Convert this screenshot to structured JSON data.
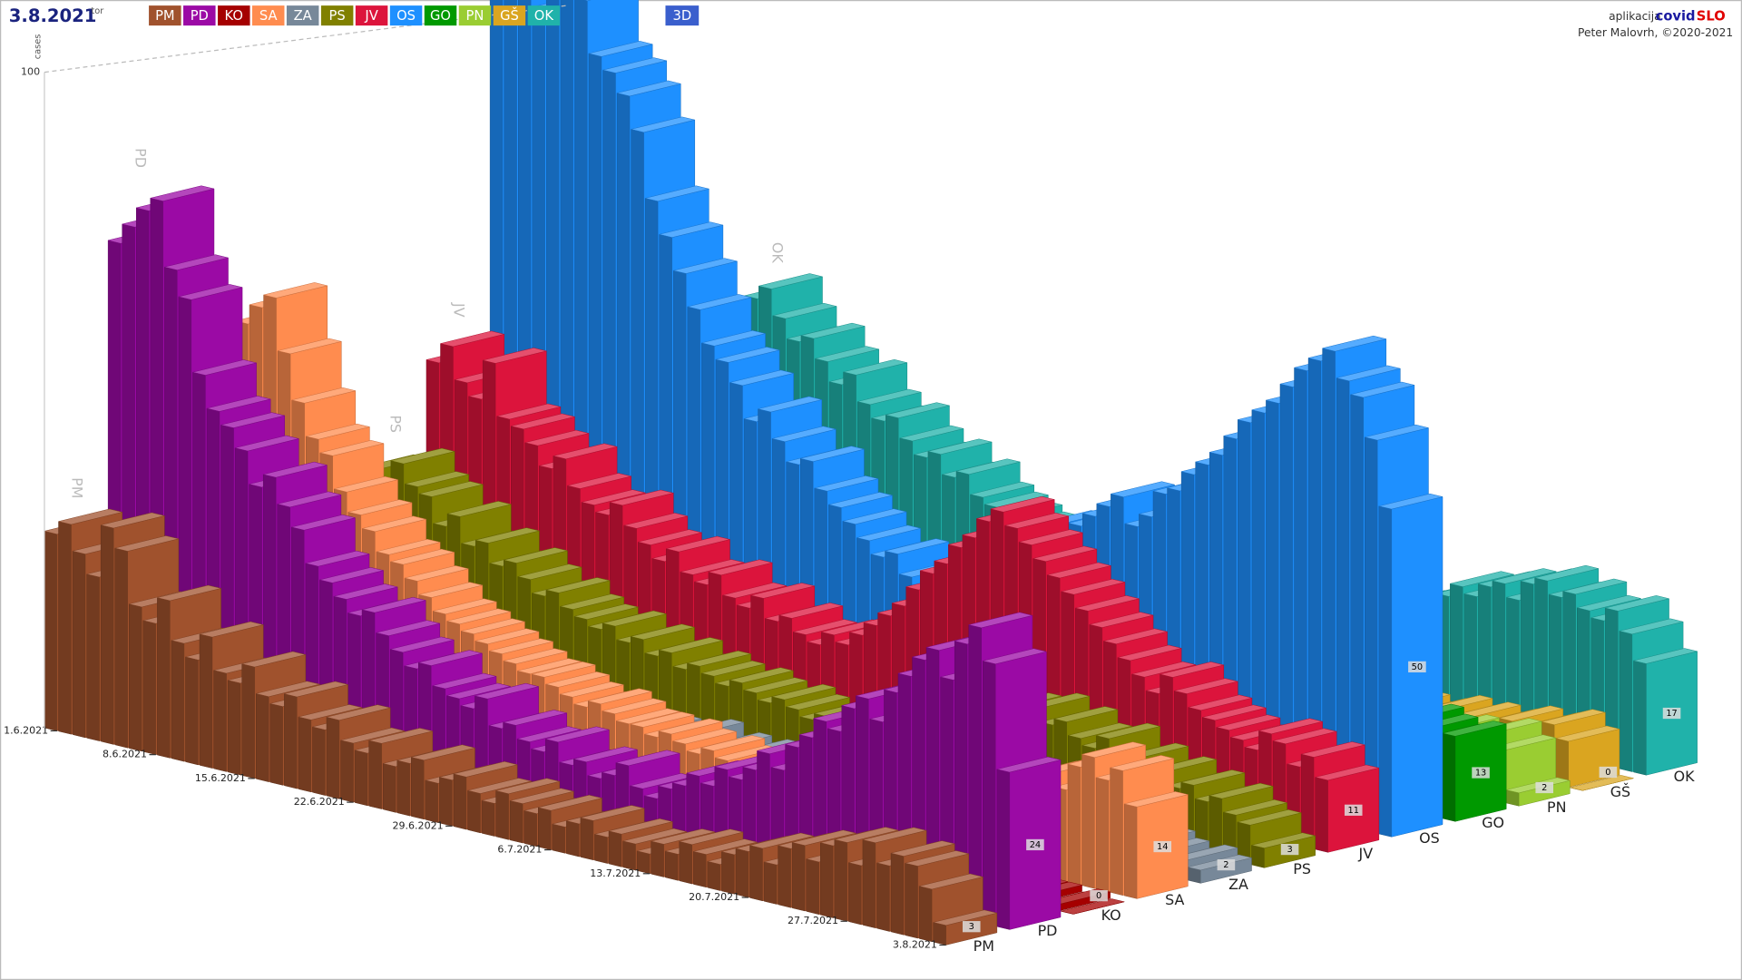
{
  "chart_data": {
    "type": "bar3d",
    "date": "3.8.2021",
    "weekday": "tor",
    "mode_button": "3D",
    "app_label": "aplikacija",
    "app_name_1": "covid",
    "app_name_2": "SLO",
    "credit": "Peter Malovrh, ©2020-2021",
    "ylabel": "cases",
    "categories": [
      "1.6.2021",
      null,
      null,
      null,
      null,
      null,
      null,
      "8.6.2021",
      null,
      null,
      null,
      null,
      null,
      null,
      "15.6.2021",
      null,
      null,
      null,
      null,
      null,
      null,
      "22.6.2021",
      null,
      null,
      null,
      null,
      null,
      null,
      "29.6.2021",
      null,
      null,
      null,
      null,
      null,
      null,
      "6.7.2021",
      null,
      null,
      null,
      null,
      null,
      null,
      "13.7.2021",
      null,
      null,
      null,
      null,
      null,
      null,
      "20.7.2021",
      null,
      null,
      null,
      null,
      null,
      null,
      "27.7.2021",
      null,
      null,
      null,
      null,
      null,
      null,
      "3.8.2021"
    ],
    "ylim": [
      0,
      100
    ],
    "yticks": [
      100
    ],
    "series": [
      {
        "name": "PM",
        "color": "#a0522d",
        "values": [
          30,
          32,
          28,
          25,
          33,
          30,
          22,
          20,
          24,
          18,
          16,
          20,
          15,
          14,
          17,
          13,
          12,
          14,
          11,
          10,
          12,
          9,
          8,
          10,
          7,
          8,
          9,
          6,
          7,
          8,
          6,
          5,
          7,
          6,
          5,
          6,
          4,
          5,
          6,
          4,
          5,
          4,
          3,
          5,
          4,
          6,
          5,
          4,
          6,
          7,
          8,
          6,
          9,
          10,
          8,
          11,
          12,
          9,
          13,
          10,
          12,
          11,
          8,
          3
        ]
      },
      {
        "name": "PD",
        "color": "#9b0aa5",
        "values": [
          72,
          75,
          78,
          80,
          70,
          66,
          55,
          50,
          48,
          45,
          40,
          42,
          38,
          35,
          30,
          28,
          26,
          24,
          25,
          22,
          20,
          18,
          19,
          16,
          15,
          14,
          16,
          12,
          13,
          11,
          10,
          12,
          9,
          10,
          8,
          9,
          11,
          8,
          7,
          9,
          10,
          12,
          11,
          14,
          13,
          15,
          18,
          16,
          20,
          22,
          25,
          24,
          28,
          30,
          27,
          32,
          35,
          38,
          40,
          36,
          42,
          45,
          40,
          24
        ]
      },
      {
        "name": "KO",
        "color": "#a50000",
        "values": [
          3,
          2,
          4,
          3,
          2,
          1,
          2,
          3,
          2,
          1,
          2,
          3,
          1,
          2,
          1,
          0,
          1,
          2,
          1,
          0,
          1,
          2,
          1,
          1,
          0,
          1,
          2,
          1,
          0,
          1,
          1,
          0,
          1,
          0,
          1,
          2,
          1,
          0,
          1,
          1,
          2,
          1,
          0,
          1,
          2,
          1,
          1,
          0,
          1,
          2,
          1,
          1,
          0,
          1,
          2,
          1,
          1,
          0,
          2,
          1,
          1,
          0,
          1,
          0
        ]
      },
      {
        "name": "SA",
        "color": "#ff8c4f",
        "values": [
          55,
          58,
          60,
          52,
          45,
          40,
          38,
          33,
          30,
          28,
          25,
          24,
          22,
          20,
          18,
          17,
          16,
          15,
          14,
          13,
          12,
          12,
          11,
          10,
          9,
          10,
          9,
          8,
          8,
          7,
          8,
          7,
          6,
          7,
          6,
          5,
          6,
          5,
          4,
          6,
          5,
          6,
          5,
          7,
          6,
          8,
          7,
          6,
          9,
          8,
          10,
          9,
          11,
          12,
          10,
          13,
          15,
          16,
          14,
          18,
          20,
          17,
          19,
          14
        ]
      },
      {
        "name": "ZA",
        "color": "#778899",
        "values": [
          8,
          7,
          9,
          6,
          8,
          7,
          5,
          6,
          5,
          6,
          4,
          5,
          6,
          4,
          5,
          3,
          4,
          5,
          3,
          4,
          3,
          4,
          3,
          2,
          3,
          2,
          3,
          4,
          2,
          3,
          2,
          3,
          2,
          3,
          2,
          1,
          3,
          2,
          2,
          1,
          2,
          3,
          2,
          2,
          1,
          2,
          3,
          2,
          2,
          3,
          4,
          3,
          2,
          3,
          4,
          3,
          4,
          3,
          2,
          4,
          3,
          2,
          3,
          2
        ]
      },
      {
        "name": "PS",
        "color": "#808000",
        "values": [
          28,
          25,
          30,
          27,
          26,
          22,
          24,
          20,
          21,
          18,
          19,
          17,
          15,
          16,
          14,
          13,
          12,
          13,
          11,
          12,
          10,
          11,
          9,
          10,
          9,
          8,
          9,
          8,
          7,
          8,
          7,
          6,
          7,
          6,
          7,
          8,
          9,
          8,
          10,
          11,
          10,
          12,
          13,
          12,
          14,
          15,
          13,
          16,
          14,
          15,
          13,
          12,
          14,
          11,
          12,
          10,
          11,
          9,
          10,
          8,
          9,
          7,
          6,
          3
        ]
      },
      {
        "name": "JV",
        "color": "#dc143c",
        "values": [
          42,
          45,
          40,
          38,
          44,
          36,
          35,
          33,
          30,
          32,
          28,
          26,
          25,
          27,
          24,
          22,
          20,
          22,
          19,
          18,
          20,
          17,
          16,
          18,
          15,
          16,
          14,
          13,
          15,
          14,
          16,
          18,
          20,
          22,
          25,
          28,
          30,
          33,
          35,
          38,
          40,
          38,
          36,
          34,
          32,
          30,
          28,
          26,
          24,
          22,
          20,
          18,
          21,
          19,
          17,
          16,
          15,
          14,
          13,
          16,
          15,
          12,
          14,
          11
        ]
      },
      {
        "name": "OS",
        "color": "#1e90ff",
        "values": [
          110,
          108,
          100,
          95,
          112,
          105,
          98,
          90,
          88,
          85,
          80,
          70,
          65,
          60,
          55,
          50,
          48,
          45,
          40,
          42,
          38,
          35,
          36,
          32,
          30,
          28,
          26,
          24,
          25,
          22,
          20,
          18,
          20,
          22,
          24,
          26,
          28,
          30,
          32,
          35,
          34,
          36,
          38,
          40,
          42,
          38,
          40,
          44,
          45,
          48,
          50,
          52,
          55,
          58,
          60,
          62,
          65,
          68,
          70,
          72,
          68,
          66,
          60,
          50
        ]
      },
      {
        "name": "GO",
        "color": "#009900",
        "values": [
          3,
          4,
          2,
          5,
          3,
          4,
          3,
          2,
          3,
          2,
          4,
          3,
          2,
          3,
          2,
          3,
          2,
          3,
          2,
          2,
          3,
          2,
          3,
          2,
          2,
          3,
          2,
          3,
          2,
          3,
          3,
          2,
          3,
          4,
          3,
          4,
          5,
          4,
          5,
          6,
          5,
          6,
          7,
          6,
          7,
          8,
          7,
          8,
          9,
          8,
          9,
          10,
          9,
          11,
          10,
          12,
          11,
          12,
          13,
          12,
          14,
          13,
          12,
          13
        ]
      },
      {
        "name": "PN",
        "color": "#9acd32",
        "values": [
          5,
          6,
          4,
          5,
          7,
          6,
          5,
          4,
          5,
          4,
          6,
          5,
          4,
          5,
          3,
          4,
          3,
          4,
          3,
          4,
          3,
          2,
          3,
          4,
          3,
          2,
          3,
          2,
          3,
          2,
          3,
          2,
          2,
          3,
          2,
          3,
          2,
          2,
          3,
          2,
          3,
          2,
          3,
          4,
          3,
          4,
          5,
          4,
          5,
          6,
          5,
          6,
          7,
          6,
          7,
          8,
          7,
          8,
          9,
          8,
          9,
          10,
          8,
          2
        ]
      },
      {
        "name": "GŠ",
        "color": "#daa520",
        "values": [
          4,
          5,
          3,
          4,
          6,
          5,
          4,
          3,
          4,
          3,
          5,
          4,
          3,
          4,
          3,
          2,
          3,
          2,
          3,
          2,
          3,
          2,
          2,
          3,
          2,
          3,
          2,
          2,
          1,
          2,
          2,
          1,
          2,
          1,
          2,
          1,
          2,
          2,
          1,
          2,
          2,
          3,
          2,
          3,
          4,
          3,
          4,
          5,
          4,
          5,
          6,
          5,
          6,
          7,
          6,
          7,
          6,
          7,
          8,
          7,
          8,
          9,
          7,
          0
        ]
      },
      {
        "name": "OK",
        "color": "#20b2aa",
        "values": [
          40,
          42,
          38,
          35,
          36,
          33,
          30,
          32,
          28,
          26,
          27,
          24,
          22,
          23,
          20,
          21,
          18,
          17,
          16,
          15,
          14,
          15,
          13,
          12,
          11,
          12,
          10,
          11,
          9,
          10,
          9,
          8,
          9,
          8,
          10,
          9,
          11,
          10,
          12,
          11,
          13,
          12,
          14,
          15,
          16,
          15,
          17,
          18,
          19,
          20,
          22,
          21,
          23,
          24,
          22,
          25,
          26,
          24,
          25,
          23,
          22,
          24,
          21,
          17
        ]
      }
    ]
  }
}
